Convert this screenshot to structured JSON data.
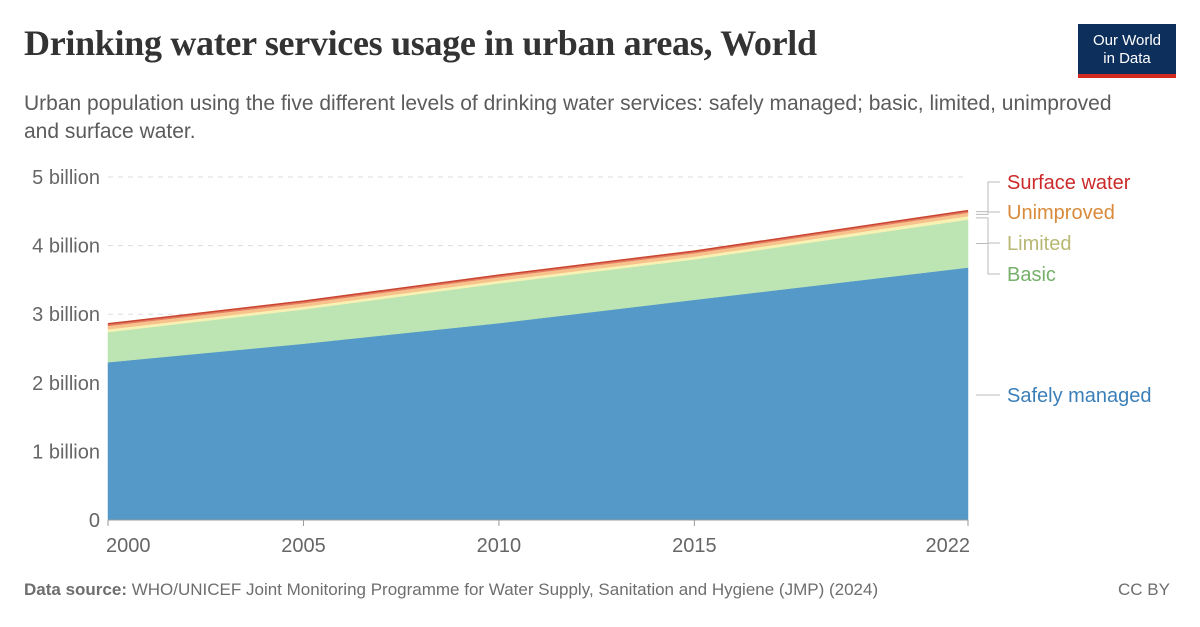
{
  "header": {
    "title": "Drinking water services usage in urban areas, World",
    "subtitle": "Urban population using the five different levels of drinking water services: safely managed; basic, limited, unimproved and surface water.",
    "logo_line1": "Our World",
    "logo_line2": "in Data"
  },
  "footer": {
    "source_label": "Data source:",
    "source_text": "WHO/UNICEF Joint Monitoring Programme for Water Supply, Sanitation and Hygiene (JMP) (2024)",
    "license": "CC BY"
  },
  "chart_data": {
    "type": "area",
    "stacked": true,
    "x": [
      2000,
      2005,
      2010,
      2015,
      2022
    ],
    "ylim": [
      0,
      5000000000
    ],
    "y_ticks": [
      {
        "value": 0,
        "label": "0"
      },
      {
        "value": 1000000000,
        "label": "1 billion"
      },
      {
        "value": 2000000000,
        "label": "2 billion"
      },
      {
        "value": 3000000000,
        "label": "3 billion"
      },
      {
        "value": 4000000000,
        "label": "4 billion"
      },
      {
        "value": 5000000000,
        "label": "5 billion"
      }
    ],
    "x_ticks": [
      "2000",
      "2005",
      "2010",
      "2015",
      "2022"
    ],
    "grid": true,
    "legend": "right",
    "series": [
      {
        "name": "Safely managed",
        "color": "#5499c7",
        "label_color": "#3b7fb8",
        "values": [
          2300000000,
          2570000000,
          2870000000,
          3210000000,
          3680000000
        ]
      },
      {
        "name": "Basic",
        "color": "#bde5b4",
        "label_color": "#76b06a",
        "values": [
          440000000,
          500000000,
          580000000,
          590000000,
          700000000
        ]
      },
      {
        "name": "Limited",
        "color": "#f8f1b4",
        "label_color": "#b8b874",
        "values": [
          40000000,
          40000000,
          40000000,
          40000000,
          50000000
        ]
      },
      {
        "name": "Unimproved",
        "color": "#f7c28c",
        "label_color": "#d98a3a",
        "values": [
          50000000,
          50000000,
          50000000,
          50000000,
          50000000
        ]
      },
      {
        "name": "Surface water",
        "color": "#e37c62",
        "label_color": "#cc2a2a",
        "values": [
          30000000,
          30000000,
          30000000,
          30000000,
          30000000
        ]
      }
    ]
  }
}
